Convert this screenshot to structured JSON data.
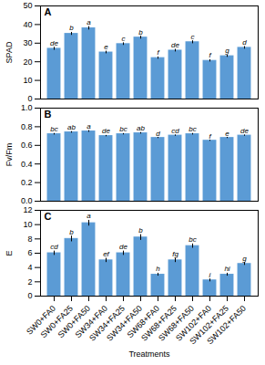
{
  "chart_data": [
    {
      "type": "bar",
      "title": "A",
      "ylabel": "SPAD",
      "categories": [
        "SW0+FA0",
        "SW0+FA25",
        "SW0+FA50",
        "SW34+FA0",
        "SW34+FA25",
        "SW34+FA50",
        "SW68+FA0",
        "SW68+FA25",
        "SW68+FA50",
        "SW102+FA0",
        "SW102+FA25",
        "SW102+FA50"
      ],
      "values": [
        27.0,
        35.0,
        38.0,
        25.0,
        29.5,
        33.0,
        22.0,
        26.0,
        30.5,
        20.5,
        23.0,
        27.5
      ],
      "errors": [
        0.8,
        0.8,
        0.9,
        0.7,
        0.7,
        0.8,
        0.6,
        0.7,
        0.8,
        0.6,
        0.6,
        0.7
      ],
      "annotations": [
        "de",
        "b",
        "a",
        "e",
        "c",
        "b",
        "f",
        "de",
        "c",
        "f",
        "g",
        "d"
      ],
      "color": "#5b9bd5",
      "ylim": [
        0,
        50
      ],
      "yticks": [
        0,
        10,
        20,
        30,
        40,
        50
      ],
      "grid": false,
      "tick_labels": "y"
    },
    {
      "type": "bar",
      "title": "B",
      "ylabel": "Fv/Fm",
      "categories": [
        "SW0+FA0",
        "SW0+FA25",
        "SW0+FA50",
        "SW34+FA0",
        "SW34+FA25",
        "SW34+FA50",
        "SW68+FA0",
        "SW68+FA25",
        "SW68+FA50",
        "SW102+FA0",
        "SW102+FA25",
        "SW102+FA50"
      ],
      "values": [
        0.72,
        0.74,
        0.75,
        0.7,
        0.72,
        0.73,
        0.68,
        0.705,
        0.72,
        0.65,
        0.68,
        0.705
      ],
      "errors": [
        0.008,
        0.008,
        0.009,
        0.007,
        0.007,
        0.008,
        0.006,
        0.007,
        0.008,
        0.006,
        0.006,
        0.007
      ],
      "annotations": [
        "bc",
        "ab",
        "a",
        "de",
        "bc",
        "ab",
        "d",
        "cd",
        "bc",
        "f",
        "e",
        "de"
      ],
      "color": "#5b9bd5",
      "ylim": [
        0.0,
        1.0
      ],
      "yticks": [
        {
          "value": 0.0,
          "label": "0.0"
        },
        {
          "value": 0.2,
          "label": "0.2"
        },
        {
          "value": 0.4,
          "label": "0.4"
        },
        {
          "value": 0.6,
          "label": "0.6"
        },
        {
          "value": 0.8,
          "label": "0.8"
        },
        {
          "value": 1.0,
          "label": "1.0"
        }
      ],
      "grid": false,
      "tick_labels": "y"
    },
    {
      "type": "bar",
      "title": "C",
      "ylabel": "E",
      "xlabel": "Treatments",
      "categories": [
        "SW0+FA0",
        "SW0+FA25",
        "SW0+FA50",
        "SW34+FA0",
        "SW34+FA25",
        "SW34+FA50",
        "SW68+FA0",
        "SW68+FA25",
        "SW68+FA50",
        "SW102+FA0",
        "SW102+FA25",
        "SW102+FA50"
      ],
      "values": [
        6.0,
        8.0,
        10.2,
        5.0,
        6.0,
        8.2,
        3.0,
        5.0,
        7.0,
        2.2,
        3.0,
        4.5
      ],
      "errors": [
        0.3,
        0.4,
        0.4,
        0.3,
        0.3,
        0.4,
        0.2,
        0.3,
        0.3,
        0.2,
        0.2,
        0.2
      ],
      "annotations": [
        "cd",
        "b",
        "a",
        "ef",
        "de",
        "b",
        "h",
        "fg",
        "bc",
        "i",
        "hi",
        "g"
      ],
      "color": "#5b9bd5",
      "ylim": [
        0,
        12
      ],
      "yticks": [
        0,
        2,
        4,
        6,
        8,
        10,
        12
      ],
      "grid": false
    }
  ]
}
